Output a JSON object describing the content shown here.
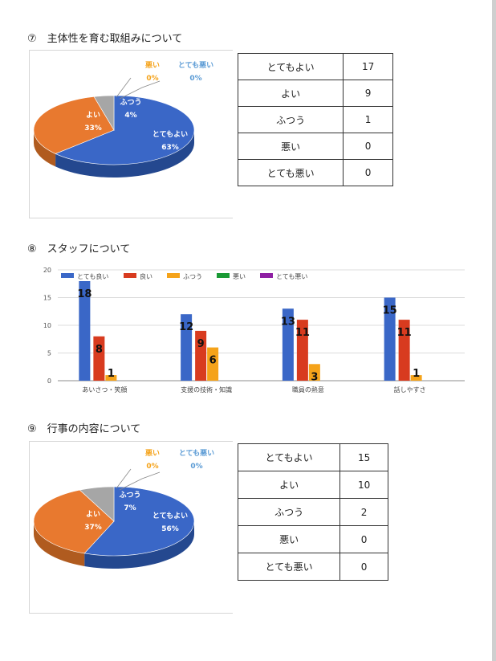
{
  "colors": {
    "very_good": "#3A67C7",
    "good": "#E8792F",
    "normal": "#A6A6A6",
    "bad": "#F5A31A",
    "very_bad": "#5B9BD5",
    "green": "#1A9A35",
    "purple": "#8E1FA3"
  },
  "section7": {
    "title": "⑦　主体性を育む取組みについて",
    "pie": [
      {
        "label": "とてもよい",
        "pct": "63%"
      },
      {
        "label": "よい",
        "pct": "33%"
      },
      {
        "label": "ふつう",
        "pct": "4%"
      },
      {
        "label": "悪い",
        "pct": "0%"
      },
      {
        "label": "とても悪い",
        "pct": "0%"
      }
    ],
    "table": [
      [
        "とてもよい",
        "17"
      ],
      [
        "よい",
        "9"
      ],
      [
        "ふつう",
        "1"
      ],
      [
        "悪い",
        "0"
      ],
      [
        "とても悪い",
        "0"
      ]
    ]
  },
  "section8": {
    "title": "⑧　スタッフについて"
  },
  "section9": {
    "title": "⑨　行事の内容について",
    "pie": [
      {
        "label": "とてもよい",
        "pct": "56%"
      },
      {
        "label": "よい",
        "pct": "37%"
      },
      {
        "label": "ふつう",
        "pct": "7%"
      },
      {
        "label": "悪い",
        "pct": "0%"
      },
      {
        "label": "とても悪い",
        "pct": "0%"
      }
    ],
    "table": [
      [
        "とてもよい",
        "15"
      ],
      [
        "よい",
        "10"
      ],
      [
        "ふつう",
        "2"
      ],
      [
        "悪い",
        "0"
      ],
      [
        "とても悪い",
        "0"
      ]
    ]
  },
  "chart_data": [
    {
      "type": "pie",
      "categories": [
        "とてもよい",
        "よい",
        "ふつう",
        "悪い",
        "とても悪い"
      ],
      "values": [
        63,
        33,
        4,
        0,
        0
      ]
    },
    {
      "type": "bar",
      "categories": [
        "あいさつ・笑顔",
        "支援の技術・知識",
        "職員の熱意",
        "話しやすさ"
      ],
      "series": [
        {
          "name": "とても良い",
          "values": [
            18,
            12,
            13,
            15
          ]
        },
        {
          "name": "良い",
          "values": [
            8,
            9,
            11,
            11
          ]
        },
        {
          "name": "ふつう",
          "values": [
            1,
            6,
            3,
            1
          ]
        },
        {
          "name": "悪い",
          "values": [
            0,
            0,
            0,
            0
          ]
        },
        {
          "name": "とても悪い",
          "values": [
            0,
            0,
            0,
            0
          ]
        }
      ],
      "ylim": [
        0,
        20
      ],
      "yticks": [
        0,
        5,
        10,
        15,
        20
      ],
      "legend": "top-left",
      "grid": true
    },
    {
      "type": "pie",
      "categories": [
        "とてもよい",
        "よい",
        "ふつう",
        "悪い",
        "とても悪い"
      ],
      "values": [
        56,
        37,
        7,
        0,
        0
      ]
    }
  ]
}
